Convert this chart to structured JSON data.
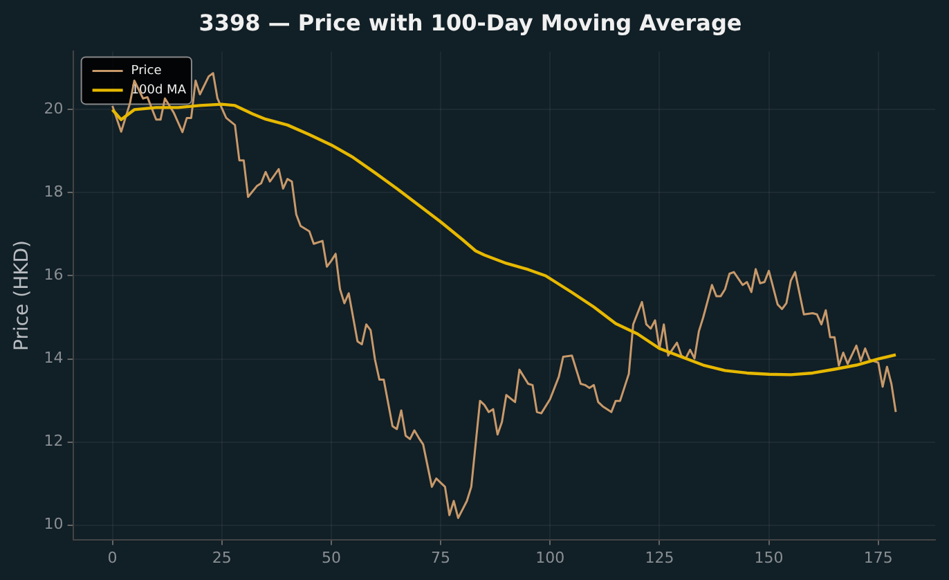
{
  "chart_data": {
    "type": "line",
    "title": "3398 — Price with 100-Day Moving Average",
    "ylabel": "Price (HKD)",
    "xlim": [
      -9,
      188
    ],
    "xticks": [
      0,
      25,
      50,
      75,
      100,
      125,
      150,
      175
    ],
    "ylim": [
      9.65,
      21.4
    ],
    "yticks": [
      10,
      12,
      14,
      16,
      18,
      20
    ],
    "grid": true,
    "legend": "top left",
    "marker": "none",
    "line_style": "solid",
    "series": [
      {
        "name": "Price",
        "color": "#c8996a",
        "x": [
          0,
          2,
          4,
          5,
          7,
          8,
          10,
          11,
          12,
          14,
          16,
          17,
          18,
          19,
          20,
          22,
          23,
          24,
          26,
          28,
          29,
          30,
          31,
          33,
          34,
          35,
          36,
          38,
          39,
          40,
          41,
          42,
          43,
          45,
          46,
          48,
          49,
          50,
          51,
          52,
          53,
          54,
          56,
          57,
          58,
          59,
          60,
          61,
          62,
          64,
          65,
          66,
          67,
          68,
          69,
          70,
          71,
          73,
          74,
          76,
          77,
          78,
          79,
          81,
          82,
          84,
          85,
          86,
          87,
          88,
          89,
          90,
          92,
          93,
          95,
          96,
          97,
          98,
          100,
          102,
          103,
          105,
          107,
          108,
          109,
          110,
          111,
          112,
          114,
          115,
          116,
          118,
          119,
          120,
          121,
          122,
          123,
          124,
          125,
          126,
          127,
          129,
          130,
          131,
          132,
          133,
          134,
          135,
          137,
          138,
          139,
          140,
          141,
          142,
          144,
          145,
          146,
          147,
          148,
          149,
          150,
          152,
          153,
          154,
          155,
          156,
          158,
          160,
          161,
          162,
          163,
          164,
          165,
          166,
          167,
          168,
          170,
          171,
          172,
          173,
          175,
          176,
          177,
          178,
          179
        ],
        "values": [
          20.09,
          19.47,
          20.15,
          20.7,
          20.27,
          20.3,
          19.76,
          19.76,
          20.27,
          19.93,
          19.46,
          19.8,
          19.8,
          20.7,
          20.37,
          20.8,
          20.88,
          20.27,
          19.8,
          19.63,
          18.78,
          18.78,
          17.9,
          18.16,
          18.23,
          18.5,
          18.27,
          18.57,
          18.1,
          18.33,
          18.27,
          17.48,
          17.2,
          17.07,
          16.77,
          16.84,
          16.22,
          16.36,
          16.53,
          15.68,
          15.34,
          15.58,
          14.42,
          14.35,
          14.83,
          14.69,
          13.98,
          13.5,
          13.5,
          12.38,
          12.31,
          12.76,
          12.15,
          12.07,
          12.28,
          12.1,
          11.94,
          10.92,
          11.12,
          10.92,
          10.24,
          10.58,
          10.17,
          10.58,
          10.92,
          12.99,
          12.89,
          12.72,
          12.79,
          12.18,
          12.48,
          13.13,
          12.96,
          13.74,
          13.4,
          13.37,
          12.72,
          12.69,
          13.03,
          13.57,
          14.05,
          14.08,
          13.4,
          13.37,
          13.3,
          13.37,
          12.96,
          12.86,
          12.72,
          12.99,
          12.99,
          13.64,
          14.83,
          15.1,
          15.37,
          14.83,
          14.73,
          14.93,
          14.25,
          14.83,
          14.08,
          14.39,
          14.08,
          14.01,
          14.22,
          14.01,
          14.66,
          15,
          15.78,
          15.51,
          15.51,
          15.68,
          16.05,
          16.09,
          15.78,
          15.85,
          15.61,
          16.16,
          15.82,
          15.85,
          16.12,
          15.31,
          15.2,
          15.34,
          15.88,
          16.09,
          15.07,
          15.1,
          15.07,
          14.83,
          15.17,
          14.52,
          14.52,
          13.84,
          14.15,
          13.88,
          14.32,
          13.95,
          14.25,
          13.98,
          13.91,
          13.33,
          13.81,
          13.4,
          12.72
        ]
      },
      {
        "name": "100d MA",
        "color": "#e6b800",
        "x": [
          0,
          2,
          5,
          10,
          15,
          20,
          25,
          28,
          32,
          35,
          40,
          45,
          50,
          55,
          60,
          65,
          70,
          75,
          80,
          83,
          85,
          90,
          95,
          99,
          105,
          110,
          115,
          120,
          125,
          130,
          135,
          140,
          145,
          150,
          155,
          160,
          165,
          170,
          175,
          179
        ],
        "values": [
          20,
          19.76,
          20,
          20.05,
          20.05,
          20.1,
          20.13,
          20.1,
          19.9,
          19.77,
          19.63,
          19.4,
          19.15,
          18.85,
          18.48,
          18.1,
          17.7,
          17.3,
          16.87,
          16.6,
          16.5,
          16.3,
          16.15,
          16,
          15.6,
          15.25,
          14.85,
          14.6,
          14.25,
          14.05,
          13.85,
          13.72,
          13.66,
          13.63,
          13.62,
          13.66,
          13.75,
          13.85,
          14,
          14.1
        ]
      }
    ]
  }
}
